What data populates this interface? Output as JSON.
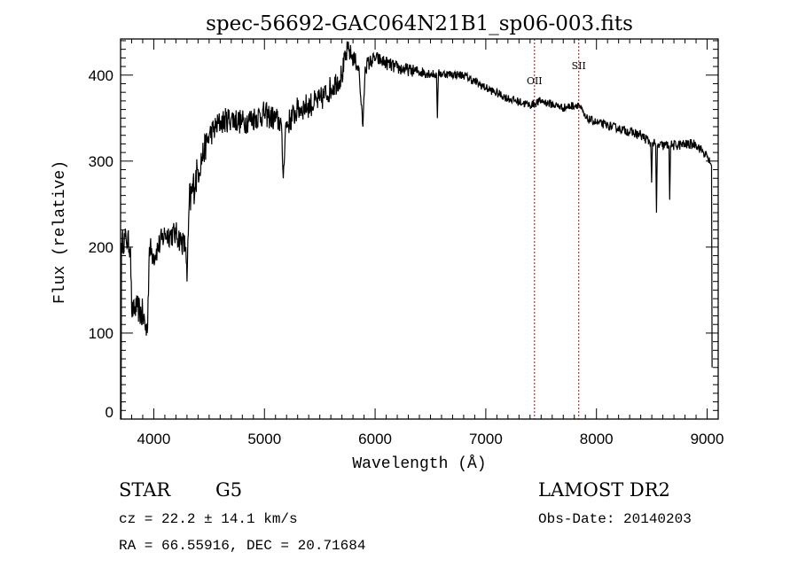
{
  "chart_data": {
    "type": "line",
    "title": "spec-56692-GAC064N21B1_sp06-003.fits",
    "xlabel": "Wavelength (Å)",
    "ylabel": "Flux (relative)",
    "xlim": [
      3700,
      9100
    ],
    "ylim": [
      0,
      442
    ],
    "xticks": [
      4000,
      5000,
      6000,
      7000,
      8000,
      9000
    ],
    "xtick_labels": [
      "4000",
      "5000",
      "6000",
      "7000",
      "8000",
      "9000"
    ],
    "yticks": [
      0,
      100,
      200,
      300,
      400
    ],
    "ytick_labels": [
      "0",
      "100",
      "200",
      "300",
      "400"
    ],
    "grid": false,
    "series": [
      {
        "name": "spectrum",
        "color": "#000000",
        "anchors_wavelength_flux_noise": [
          [
            3705,
            0,
            0
          ],
          [
            3708,
            205,
            15
          ],
          [
            3750,
            210,
            15
          ],
          [
            3790,
            200,
            15
          ],
          [
            3800,
            125,
            12
          ],
          [
            3850,
            130,
            15
          ],
          [
            3900,
            120,
            20
          ],
          [
            3940,
            100,
            20
          ],
          [
            3960,
            200,
            15
          ],
          [
            4000,
            190,
            15
          ],
          [
            4100,
            215,
            15
          ],
          [
            4200,
            215,
            15
          ],
          [
            4290,
            200,
            15
          ],
          [
            4300,
            160,
            10
          ],
          [
            4320,
            250,
            25
          ],
          [
            4400,
            290,
            20
          ],
          [
            4500,
            330,
            15
          ],
          [
            4600,
            345,
            15
          ],
          [
            4700,
            350,
            15
          ],
          [
            4800,
            345,
            15
          ],
          [
            5000,
            355,
            15
          ],
          [
            5150,
            345,
            15
          ],
          [
            5170,
            280,
            5
          ],
          [
            5190,
            340,
            15
          ],
          [
            5300,
            360,
            15
          ],
          [
            5500,
            370,
            15
          ],
          [
            5700,
            400,
            15
          ],
          [
            5750,
            430,
            12
          ],
          [
            5850,
            410,
            10
          ],
          [
            5890,
            340,
            4
          ],
          [
            5910,
            410,
            10
          ],
          [
            6000,
            420,
            8
          ],
          [
            6200,
            408,
            8
          ],
          [
            6500,
            402,
            6
          ],
          [
            6555,
            400,
            4
          ],
          [
            6563,
            350,
            3
          ],
          [
            6572,
            402,
            5
          ],
          [
            6800,
            400,
            5
          ],
          [
            7000,
            385,
            5
          ],
          [
            7200,
            373,
            5
          ],
          [
            7400,
            365,
            5
          ],
          [
            7500,
            370,
            5
          ],
          [
            7700,
            362,
            5
          ],
          [
            7840,
            366,
            5
          ],
          [
            7900,
            350,
            5
          ],
          [
            8000,
            345,
            5
          ],
          [
            8200,
            338,
            5
          ],
          [
            8400,
            330,
            6
          ],
          [
            8490,
            322,
            6
          ],
          [
            8498,
            275,
            3
          ],
          [
            8506,
            322,
            6
          ],
          [
            8535,
            318,
            6
          ],
          [
            8542,
            240,
            3
          ],
          [
            8550,
            318,
            6
          ],
          [
            8655,
            318,
            6
          ],
          [
            8662,
            255,
            3
          ],
          [
            8670,
            318,
            6
          ],
          [
            8900,
            320,
            6
          ],
          [
            9000,
            305,
            5
          ],
          [
            9040,
            295,
            5
          ],
          [
            9045,
            60,
            0
          ]
        ]
      }
    ],
    "annotations": [
      {
        "label": "OII",
        "wavelength": 7440,
        "style": "dotted",
        "color": "#8b1a1a"
      },
      {
        "label": "SII",
        "wavelength": 7840,
        "style": "dotted",
        "color": "#8b1a1a"
      }
    ]
  },
  "info": {
    "object_class": "STAR",
    "subclass": "G5",
    "cz": "cz = 22.2 ± 14.1 km/s",
    "coords": "RA =  66.55916, DEC =  20.71684",
    "survey": "LAMOST DR2",
    "obs_date": "Obs-Date: 20140203"
  }
}
